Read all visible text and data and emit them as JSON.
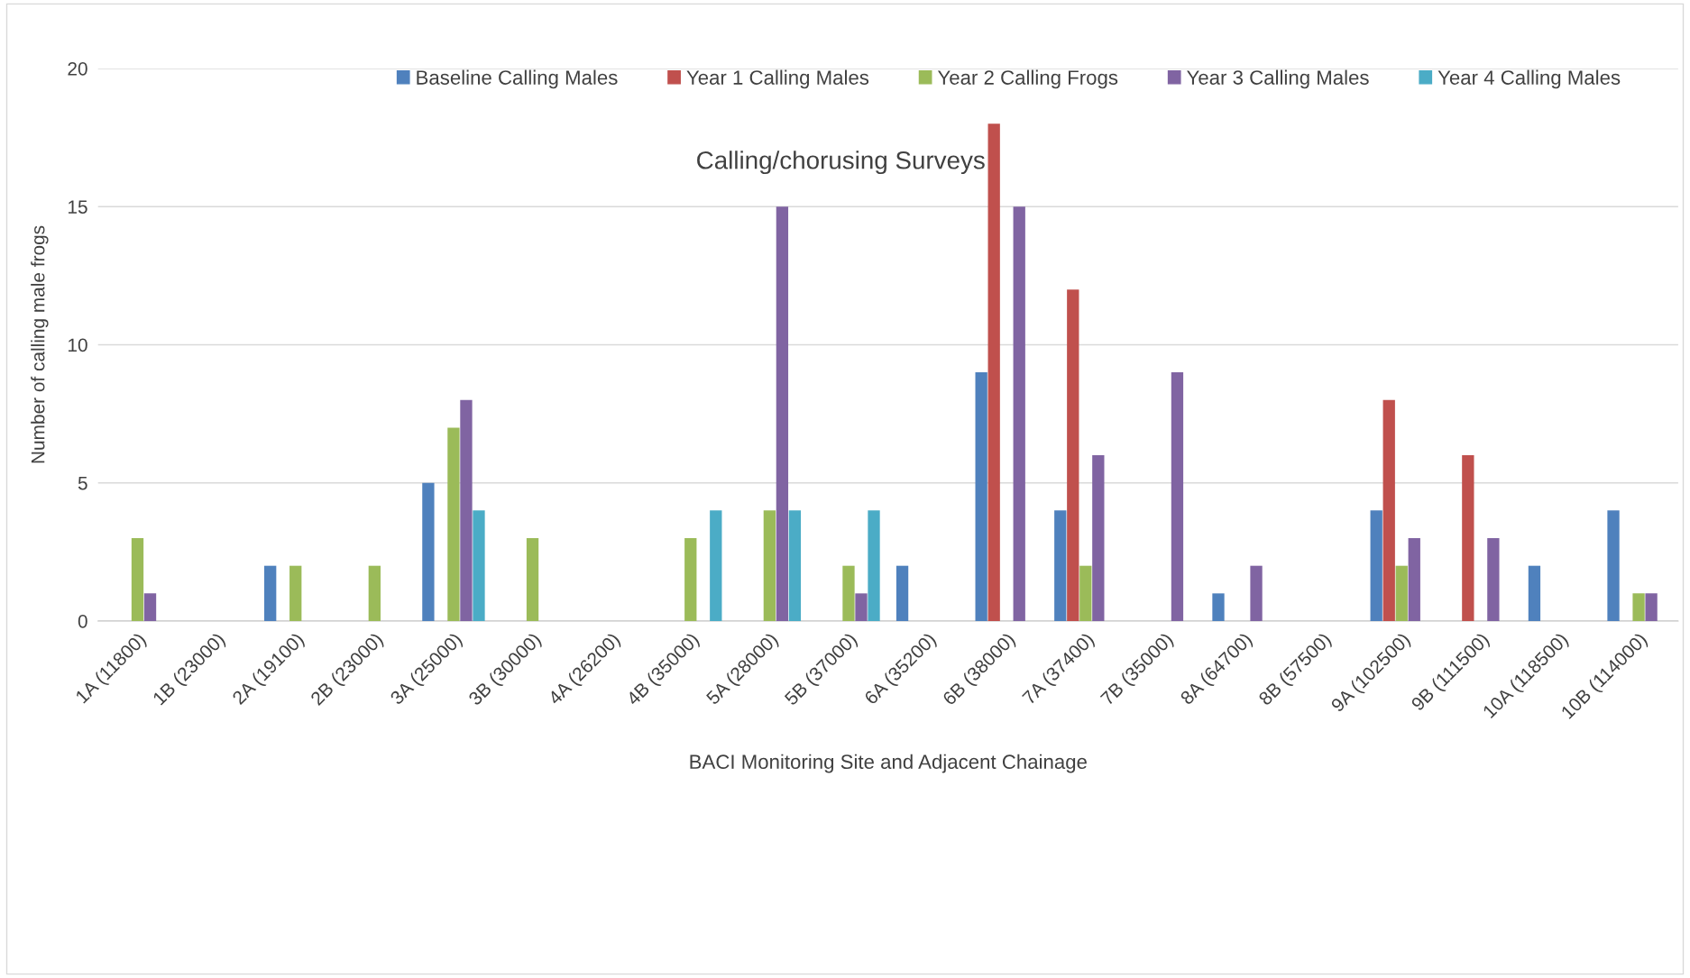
{
  "chart_data": {
    "type": "bar",
    "title": "Calling/chorusing Surveys",
    "xlabel": "BACI Monitoring Site and Adjacent Chainage",
    "ylabel": "Number of calling male frogs",
    "categories": [
      "1A (11800)",
      "1B (23000)",
      "2A (19100)",
      "2B (23000)",
      "3A (25000)",
      "3B (30000)",
      "4A (26200)",
      "4B (35000)",
      "5A (28000)",
      "5B (37000)",
      "6A (35200)",
      "6B (38000)",
      "7A (37400)",
      "7B (35000)",
      "8A (64700)",
      "8B (57500)",
      "9A (102500)",
      "9B (111500)",
      "10A (118500)",
      "10B (114000)"
    ],
    "series": [
      {
        "name": "Baseline Calling Males",
        "color": "#4f81bd",
        "values": [
          0,
          0,
          2,
          0,
          5,
          0,
          0,
          0,
          0,
          0,
          2,
          9,
          4,
          0,
          1,
          0,
          4,
          0,
          2,
          4
        ]
      },
      {
        "name": "Year 1 Calling Males",
        "color": "#c0504d",
        "values": [
          0,
          0,
          0,
          0,
          0,
          0,
          0,
          0,
          0,
          0,
          0,
          18,
          12,
          0,
          0,
          0,
          8,
          6,
          0,
          0
        ]
      },
      {
        "name": "Year 2 Calling Frogs",
        "color": "#9bbb59",
        "values": [
          3,
          0,
          2,
          2,
          7,
          3,
          0,
          3,
          4,
          2,
          0,
          0,
          2,
          0,
          0,
          0,
          2,
          0,
          0,
          1
        ]
      },
      {
        "name": "Year 3 Calling Males",
        "color": "#8064a2",
        "values": [
          1,
          0,
          0,
          0,
          8,
          0,
          0,
          0,
          15,
          1,
          0,
          15,
          6,
          9,
          2,
          0,
          3,
          3,
          0,
          1
        ]
      },
      {
        "name": "Year 4 Calling Males",
        "color": "#4bacc6",
        "values": [
          0,
          0,
          0,
          0,
          4,
          0,
          0,
          4,
          4,
          4,
          0,
          0,
          0,
          0,
          0,
          0,
          0,
          0,
          0,
          0
        ]
      }
    ],
    "ylim": [
      0,
      20
    ],
    "yticks": [
      0,
      5,
      10,
      15,
      20
    ],
    "grid": "y",
    "legend": "top right"
  }
}
